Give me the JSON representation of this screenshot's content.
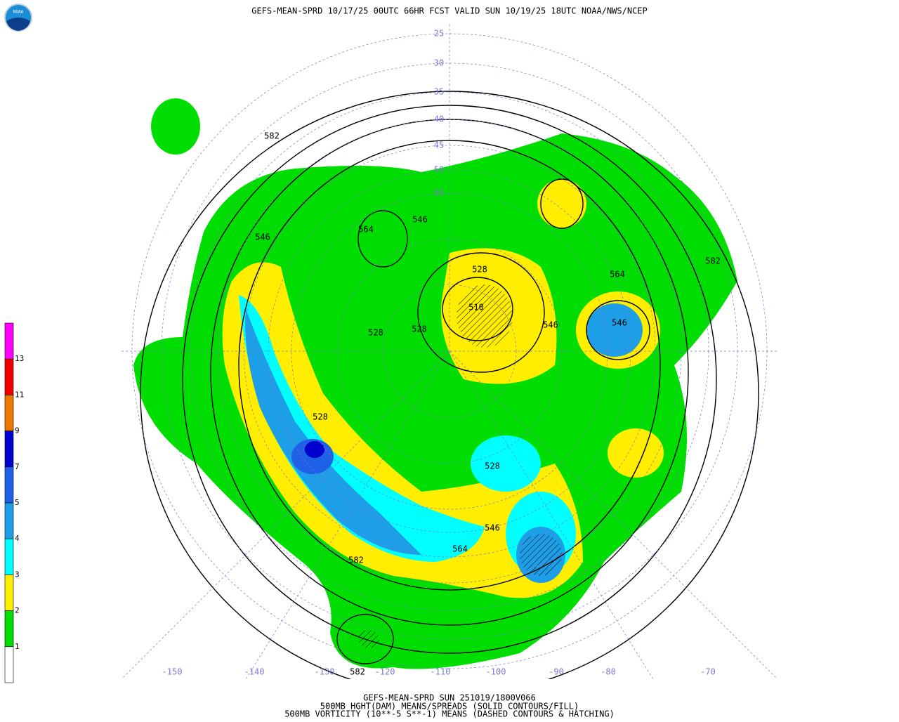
{
  "header": {
    "logo": "NOAA",
    "title": "GEFS-MEAN-SPRD 10/17/25 00UTC 66HR FCST VALID SUN 10/19/25 18UTC NOAA/NWS/NCEP"
  },
  "colorbar": {
    "colors": [
      "#ff00ff",
      "#ee0000",
      "#ee7700",
      "#0000cc",
      "#1e60e6",
      "#1e9ee6",
      "#00ffff",
      "#ffee00",
      "#00dd00",
      "#ffffff"
    ],
    "labels": [
      13,
      11,
      9,
      7,
      5,
      4,
      3,
      2,
      1
    ]
  },
  "map": {
    "latitude_labels": [
      25,
      30,
      35,
      40,
      45,
      50,
      55
    ],
    "longitude_labels": [
      -150,
      -140,
      -130,
      -120,
      -110,
      -100,
      -90,
      -80,
      -70
    ],
    "contour_labels": [
      582,
      564,
      546,
      528,
      510,
      546,
      564,
      582,
      546,
      528,
      528,
      528,
      528,
      546,
      564,
      582,
      582,
      546
    ]
  },
  "footer": {
    "lines": [
      "GEFS-MEAN-SPRD SUN 251019/1800V066",
      "500MB HGHT(DAM) MEANS/SPREADS (SOLID CONTOURS/FILL)",
      "500MB VORTICITY (10**-5 S**-1) MEANS (DASHED CONTOURS & HATCHING)"
    ]
  }
}
